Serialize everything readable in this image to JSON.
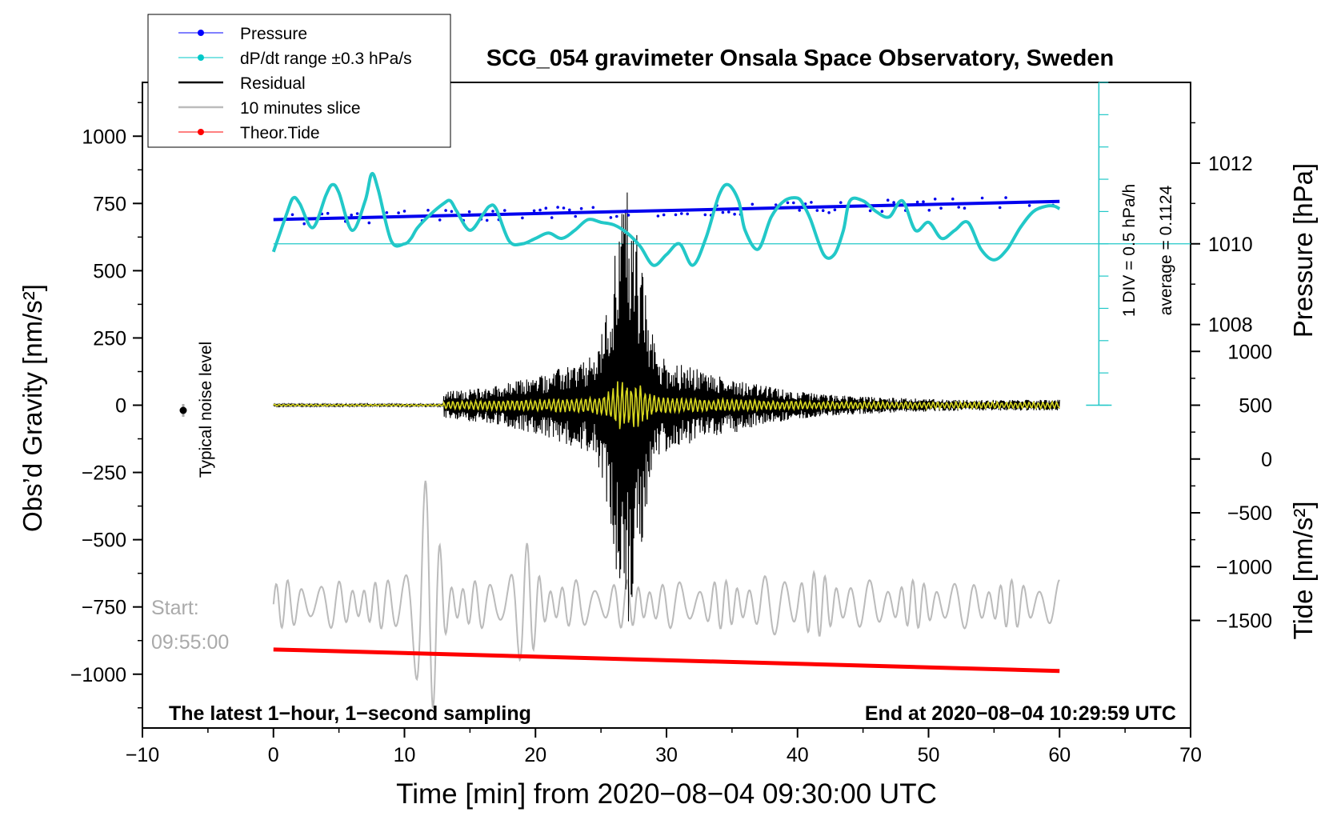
{
  "chart_data": {
    "type": "line",
    "title": "SCG_054 gravimeter Onsala Space Observatory, Sweden",
    "xlabel": "Time [min] from 2020−08−04 09:30:00 UTC",
    "ylabel_left": "Obs’d Gravity [nm/s²]",
    "ylabel_right_top": "Pressure [hPa]",
    "ylabel_right_bottom": "Tide [nm/s²]",
    "xlim": [
      -10,
      70
    ],
    "ylim_left": [
      -1200,
      1200
    ],
    "x_ticks": [
      -10,
      0,
      10,
      20,
      30,
      40,
      50,
      60,
      70
    ],
    "x_tick_labels": [
      "−10",
      "0",
      "10",
      "20",
      "30",
      "40",
      "50",
      "60",
      "70"
    ],
    "y_left_ticks": [
      1000,
      750,
      500,
      250,
      0,
      -250,
      -500,
      -750,
      -1000
    ],
    "y_left_tick_labels": [
      "1000",
      "750",
      "500",
      "250",
      "0",
      "−250",
      "−500",
      "−750",
      "−1000"
    ],
    "pressure_axis": {
      "ticks": [
        1012,
        1010,
        1008
      ],
      "tick_labels": [
        "1012",
        "1010",
        "1008"
      ],
      "gravity_equivalent": [
        900,
        600,
        300
      ]
    },
    "tide_axis": {
      "ticks": [
        1000,
        500,
        0,
        -500,
        -1000,
        -1500
      ],
      "tick_labels": [
        "1000",
        "500",
        "0",
        "−500",
        "−1000",
        "−1500"
      ],
      "gravity_equivalent": [
        200,
        0,
        -200,
        -400,
        -600,
        -800
      ]
    },
    "legend": {
      "position": "top-left",
      "entries": [
        {
          "label": "Pressure",
          "color": "#0000ff",
          "marker": true
        },
        {
          "label": "dP/dt range ±0.3 hPa/s",
          "color": "#00c8c8",
          "marker": true
        },
        {
          "label": "Residual",
          "color": "#000000",
          "marker": false
        },
        {
          "label": "10 minutes slice",
          "color": "#bbbbbb",
          "marker": false
        },
        {
          "label": "Theor.Tide",
          "color": "#ff0000",
          "marker": true
        }
      ]
    },
    "series": [
      {
        "name": "Pressure (hPa)",
        "color": "#0000ff",
        "x": [
          0,
          60
        ],
        "values": [
          1010.6,
          1011.05
        ]
      },
      {
        "name": "dP/dt (plotted gravity units)",
        "color": "#22c8c8",
        "x": [
          0,
          1,
          1.5,
          2,
          3,
          4,
          4.5,
          5,
          6,
          7,
          7.5,
          8,
          9,
          10,
          10.5,
          11,
          12,
          13,
          13.5,
          14,
          15,
          16,
          16.5,
          17,
          18,
          19,
          20,
          21,
          22,
          23,
          24,
          25,
          26,
          27,
          28,
          29,
          30,
          31,
          32,
          33,
          34,
          34.7,
          35.5,
          36,
          37,
          38,
          39,
          40,
          40.5,
          41,
          42,
          42.8,
          43.5,
          44,
          45,
          46,
          47,
          48,
          49,
          50,
          51,
          52,
          53,
          54,
          55,
          56,
          57,
          58,
          59,
          59.6,
          60
        ],
        "values": [
          570,
          710,
          770,
          750,
          660,
          780,
          820,
          790,
          650,
          760,
          860,
          800,
          610,
          600,
          620,
          660,
          710,
          750,
          760,
          720,
          650,
          710,
          740,
          730,
          610,
          600,
          620,
          640,
          620,
          650,
          690,
          680,
          670,
          640,
          590,
          520,
          560,
          600,
          520,
          620,
          780,
          820,
          760,
          650,
          580,
          700,
          760,
          770,
          740,
          690,
          560,
          560,
          650,
          760,
          760,
          720,
          700,
          760,
          650,
          680,
          620,
          650,
          680,
          580,
          540,
          580,
          660,
          720,
          740,
          740,
          730
        ]
      },
      {
        "name": "Residual",
        "color": "#000000",
        "envelope": "peak near 27 min, ±600"
      },
      {
        "name": "10 minutes slice",
        "color": "#bbbbbb",
        "envelope": "offset −740, peak near 11–12 min"
      },
      {
        "name": "Theor.Tide (plotted gravity units)",
        "color": "#ff0000",
        "x": [
          0,
          60
        ],
        "values": [
          -908,
          -988
        ]
      }
    ],
    "annotations": {
      "noise_label": "Typical noise level",
      "start_label": "Start:",
      "start_time": "09:55:00",
      "bottom_left": "The latest 1−hour, 1−second sampling",
      "bottom_right": "End at 2020−08−04 10:29:59 UTC",
      "div_label": "1 DIV = 0.5 hPa/h",
      "average_label": "average = 0.1124"
    }
  }
}
